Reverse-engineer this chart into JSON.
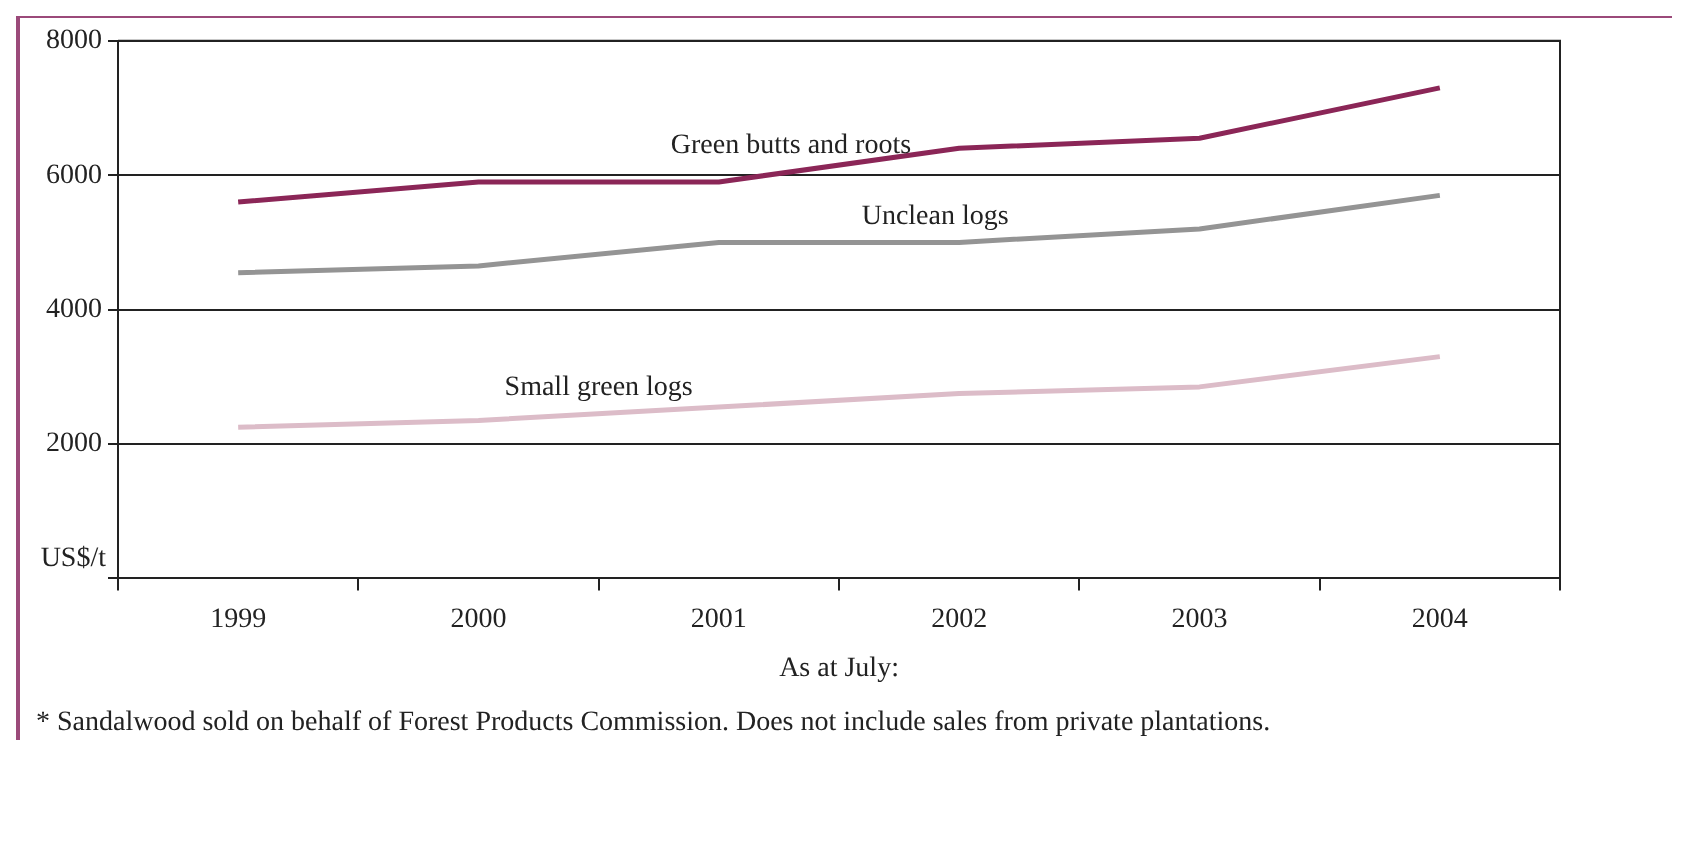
{
  "chart_data": {
    "type": "line",
    "categories": [
      "1999",
      "2000",
      "2001",
      "2002",
      "2003",
      "2004"
    ],
    "series": [
      {
        "name": "Green butts and roots",
        "color": "#8b2657",
        "values": [
          5600,
          5900,
          5900,
          6400,
          6550,
          7300
        ]
      },
      {
        "name": "Unclean logs",
        "color": "#949494",
        "values": [
          4550,
          4650,
          5000,
          5000,
          5200,
          5700
        ]
      },
      {
        "name": "Small green logs",
        "color": "#dcbcc8",
        "values": [
          2250,
          2350,
          2550,
          2750,
          2850,
          3300
        ]
      }
    ],
    "ylabel": "US$/t",
    "xlabel": "As at July:",
    "ylim": [
      0,
      8000
    ],
    "yticks": [
      {
        "value": 0,
        "label": null
      },
      2000,
      4000,
      6000,
      8000
    ],
    "grid": "y",
    "legend": false,
    "marker": "none",
    "line_style": "solid",
    "annotations": [
      "* Sandalwood sold on behalf of Forest Products Commission. Does not include sales from private plantations."
    ]
  }
}
